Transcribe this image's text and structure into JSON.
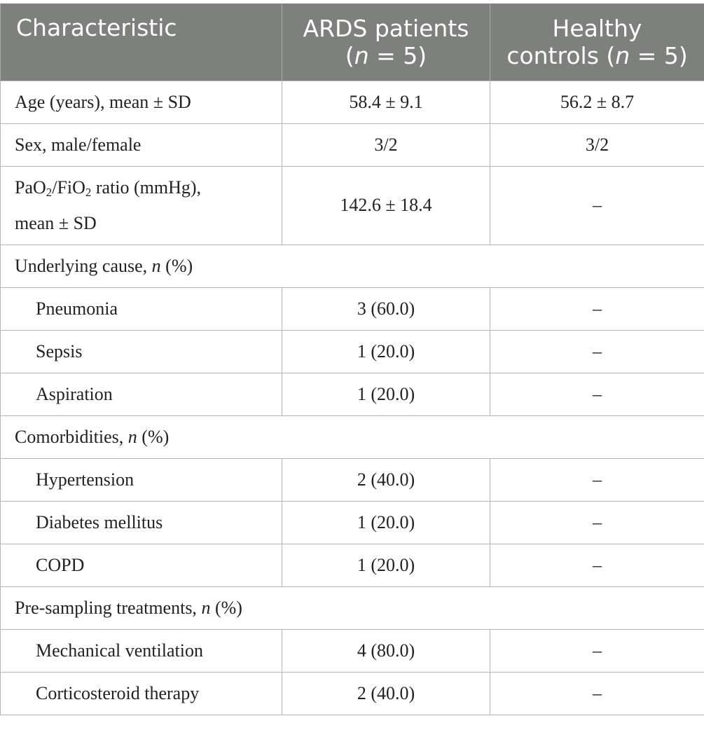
{
  "header": {
    "characteristic": "Characteristic",
    "ards_line1": "ARDS patients",
    "ards_n_open": "(",
    "n_symbol": "n",
    "ards_n_eq": " = 5)",
    "healthy_line1": "Healthy",
    "healthy_line2": "controls (",
    "healthy_n_eq": " = 5)"
  },
  "rows": {
    "age": {
      "label": "Age (years), mean ± SD",
      "ards": "58.4 ± 9.1",
      "healthy": "56.2 ± 8.7"
    },
    "sex": {
      "label": "Sex, male/female",
      "ards": "3/2",
      "healthy": "3/2"
    },
    "pf": {
      "label_pao": "PaO",
      "label_sub2a": "2",
      "label_fio": "/FiO",
      "label_sub2b": "2",
      "label_rest": " ratio (mmHg),",
      "label_line2": "mean ± SD",
      "ards": "142.6 ± 18.4",
      "healthy": "–"
    },
    "cause_section": {
      "label": "Underlying cause, ",
      "n": "n",
      "pct": " (%)"
    },
    "pneumonia": {
      "label": "Pneumonia",
      "ards": "3 (60.0)",
      "healthy": "–"
    },
    "sepsis": {
      "label": "Sepsis",
      "ards": "1 (20.0)",
      "healthy": "–"
    },
    "aspiration": {
      "label": "Aspiration",
      "ards": "1 (20.0)",
      "healthy": "–"
    },
    "comorb_section": {
      "label": "Comorbidities, ",
      "n": "n",
      "pct": " (%)"
    },
    "hypertension": {
      "label": "Hypertension",
      "ards": "2 (40.0)",
      "healthy": "–"
    },
    "diabetes": {
      "label": "Diabetes mellitus",
      "ards": "1 (20.0)",
      "healthy": "–"
    },
    "copd": {
      "label": "COPD",
      "ards": "1 (20.0)",
      "healthy": "–"
    },
    "treat_section": {
      "label": "Pre-sampling treatments, ",
      "n": "n",
      "pct": " (%)"
    },
    "mechvent": {
      "label": "Mechanical ventilation",
      "ards": "4 (80.0)",
      "healthy": "–"
    },
    "cortico": {
      "label": "Corticosteroid therapy",
      "ards": "2 (40.0)",
      "healthy": "–"
    }
  }
}
